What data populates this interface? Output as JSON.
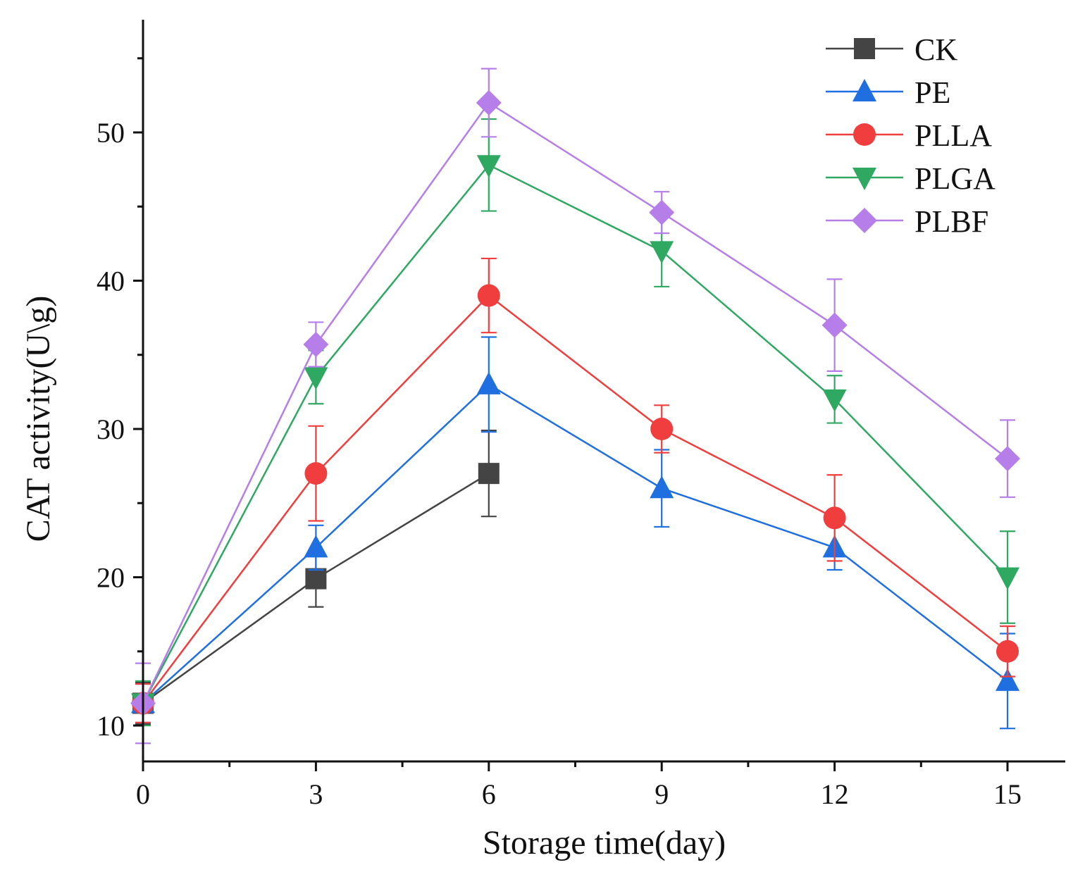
{
  "chart_data": {
    "type": "line",
    "title": "",
    "xlabel": "Storage time(day)",
    "ylabel": "CAT activity(U\\g)",
    "x": [
      0,
      3,
      6,
      9,
      12,
      15
    ],
    "xlim": [
      0,
      16
    ],
    "ylim": [
      7.5,
      57.5
    ],
    "xticks": [
      0,
      3,
      6,
      9,
      12,
      15
    ],
    "yticks": [
      10,
      20,
      30,
      40,
      50
    ],
    "grid": false,
    "legend_position": "top-right",
    "series": [
      {
        "name": "CK",
        "color": "#444444",
        "marker": "square",
        "x": [
          0,
          3,
          6
        ],
        "values": [
          11.5,
          19.9,
          27.0
        ],
        "errors": [
          1.4,
          1.9,
          2.9
        ]
      },
      {
        "name": "PE",
        "color": "#1f6fe0",
        "marker": "triangle-up",
        "x": [
          0,
          3,
          6,
          9,
          12,
          15
        ],
        "values": [
          11.5,
          22.0,
          33.0,
          26.0,
          22.0,
          13.0
        ],
        "errors": [
          1.3,
          1.5,
          3.2,
          2.6,
          1.5,
          3.2
        ]
      },
      {
        "name": "PLLA",
        "color": "#f03e3e",
        "marker": "circle",
        "x": [
          0,
          3,
          6,
          9,
          12,
          15
        ],
        "values": [
          11.5,
          27.0,
          39.0,
          30.0,
          24.0,
          15.0
        ],
        "errors": [
          1.3,
          3.2,
          2.5,
          1.6,
          2.9,
          1.7
        ]
      },
      {
        "name": "PLGA",
        "color": "#2fa862",
        "marker": "triangle-down",
        "x": [
          0,
          3,
          6,
          9,
          12,
          15
        ],
        "values": [
          11.5,
          33.5,
          47.8,
          42.0,
          32.0,
          20.0
        ],
        "errors": [
          1.5,
          1.8,
          3.1,
          2.4,
          1.6,
          3.1
        ]
      },
      {
        "name": "PLBF",
        "color": "#b57ee8",
        "marker": "diamond",
        "x": [
          0,
          3,
          6,
          9,
          12,
          15
        ],
        "values": [
          11.5,
          35.7,
          52.0,
          44.6,
          37.0,
          28.0
        ],
        "errors": [
          2.7,
          1.5,
          2.3,
          1.4,
          3.1,
          2.6
        ]
      }
    ]
  }
}
